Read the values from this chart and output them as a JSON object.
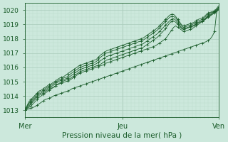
{
  "bg_color": "#cce8dc",
  "grid_color_major": "#aaccbc",
  "grid_color_minor": "#bbddcc",
  "line_color": "#1a5c2a",
  "xlabel": "Pression niveau de la mer( hPa )",
  "ylim": [
    1012.5,
    1020.5
  ],
  "yticks": [
    1013,
    1014,
    1015,
    1016,
    1017,
    1018,
    1019,
    1020
  ],
  "xtick_labels": [
    "Mer",
    "Jeu",
    "Ven"
  ],
  "xtick_positions": [
    0,
    48,
    95
  ],
  "total_points": 96,
  "series": [
    [
      1013.0,
      1013.05,
      1013.1,
      1013.15,
      1013.2,
      1013.25,
      1013.35,
      1013.45,
      1013.55,
      1013.65,
      1013.75,
      1013.8,
      1013.85,
      1013.9,
      1014.0,
      1014.05,
      1014.1,
      1014.15,
      1014.2,
      1014.25,
      1014.3,
      1014.35,
      1014.4,
      1014.5,
      1014.55,
      1014.6,
      1014.65,
      1014.7,
      1014.75,
      1014.8,
      1014.85,
      1014.9,
      1014.95,
      1015.0,
      1015.05,
      1015.1,
      1015.15,
      1015.2,
      1015.25,
      1015.3,
      1015.35,
      1015.4,
      1015.45,
      1015.5,
      1015.55,
      1015.6,
      1015.65,
      1015.7,
      1015.75,
      1015.8,
      1015.85,
      1015.9,
      1015.95,
      1016.0,
      1016.05,
      1016.1,
      1016.15,
      1016.2,
      1016.25,
      1016.3,
      1016.35,
      1016.4,
      1016.45,
      1016.5,
      1016.55,
      1016.6,
      1016.65,
      1016.7,
      1016.75,
      1016.8,
      1016.85,
      1016.9,
      1016.95,
      1017.0,
      1017.05,
      1017.1,
      1017.15,
      1017.2,
      1017.25,
      1017.3,
      1017.35,
      1017.4,
      1017.45,
      1017.5,
      1017.55,
      1017.6,
      1017.65,
      1017.7,
      1017.75,
      1017.8,
      1017.9,
      1018.0,
      1018.2,
      1018.5,
      1019.8,
      1020.2
    ],
    [
      1013.0,
      1013.1,
      1013.2,
      1013.3,
      1013.45,
      1013.6,
      1013.75,
      1013.9,
      1014.0,
      1014.1,
      1014.2,
      1014.3,
      1014.4,
      1014.5,
      1014.6,
      1014.7,
      1014.8,
      1014.85,
      1014.9,
      1014.95,
      1015.0,
      1015.05,
      1015.1,
      1015.2,
      1015.3,
      1015.4,
      1015.5,
      1015.6,
      1015.65,
      1015.7,
      1015.75,
      1015.8,
      1015.85,
      1015.9,
      1015.95,
      1016.0,
      1016.05,
      1016.1,
      1016.15,
      1016.2,
      1016.3,
      1016.35,
      1016.4,
      1016.45,
      1016.5,
      1016.55,
      1016.6,
      1016.65,
      1016.7,
      1016.75,
      1016.8,
      1016.85,
      1016.9,
      1016.95,
      1017.0,
      1017.05,
      1017.1,
      1017.15,
      1017.2,
      1017.25,
      1017.3,
      1017.35,
      1017.4,
      1017.45,
      1017.5,
      1017.6,
      1017.7,
      1017.8,
      1017.9,
      1018.0,
      1018.2,
      1018.4,
      1018.6,
      1018.8,
      1018.9,
      1018.8,
      1018.7,
      1018.6,
      1018.5,
      1018.55,
      1018.6,
      1018.65,
      1018.7,
      1018.8,
      1018.9,
      1019.0,
      1019.1,
      1019.2,
      1019.3,
      1019.4,
      1019.5,
      1019.6,
      1019.7,
      1019.8,
      1019.9,
      1020.0
    ],
    [
      1013.0,
      1013.15,
      1013.3,
      1013.45,
      1013.6,
      1013.75,
      1013.9,
      1014.05,
      1014.1,
      1014.2,
      1014.3,
      1014.4,
      1014.5,
      1014.55,
      1014.6,
      1014.7,
      1014.8,
      1014.9,
      1015.0,
      1015.05,
      1015.1,
      1015.15,
      1015.2,
      1015.3,
      1015.4,
      1015.5,
      1015.6,
      1015.7,
      1015.75,
      1015.8,
      1015.85,
      1015.9,
      1015.95,
      1016.0,
      1016.05,
      1016.1,
      1016.15,
      1016.2,
      1016.3,
      1016.4,
      1016.5,
      1016.55,
      1016.6,
      1016.65,
      1016.7,
      1016.75,
      1016.8,
      1016.85,
      1016.9,
      1016.95,
      1017.0,
      1017.05,
      1017.1,
      1017.15,
      1017.2,
      1017.25,
      1017.3,
      1017.35,
      1017.4,
      1017.5,
      1017.6,
      1017.7,
      1017.8,
      1017.9,
      1018.0,
      1018.1,
      1018.25,
      1018.4,
      1018.55,
      1018.7,
      1018.9,
      1019.1,
      1019.2,
      1019.25,
      1019.15,
      1019.0,
      1018.85,
      1018.7,
      1018.65,
      1018.7,
      1018.75,
      1018.8,
      1018.85,
      1018.9,
      1019.0,
      1019.1,
      1019.15,
      1019.2,
      1019.3,
      1019.45,
      1019.55,
      1019.65,
      1019.75,
      1019.85,
      1019.95,
      1020.05
    ],
    [
      1013.0,
      1013.2,
      1013.4,
      1013.55,
      1013.7,
      1013.85,
      1014.0,
      1014.15,
      1014.2,
      1014.3,
      1014.4,
      1014.5,
      1014.6,
      1014.65,
      1014.75,
      1014.85,
      1014.95,
      1015.05,
      1015.1,
      1015.15,
      1015.2,
      1015.25,
      1015.35,
      1015.45,
      1015.55,
      1015.65,
      1015.75,
      1015.85,
      1015.9,
      1015.95,
      1016.0,
      1016.05,
      1016.1,
      1016.15,
      1016.2,
      1016.25,
      1016.35,
      1016.45,
      1016.55,
      1016.65,
      1016.75,
      1016.8,
      1016.85,
      1016.9,
      1016.95,
      1017.0,
      1017.05,
      1017.1,
      1017.15,
      1017.2,
      1017.25,
      1017.3,
      1017.35,
      1017.4,
      1017.45,
      1017.5,
      1017.55,
      1017.6,
      1017.65,
      1017.75,
      1017.85,
      1017.95,
      1018.05,
      1018.15,
      1018.25,
      1018.35,
      1018.5,
      1018.65,
      1018.8,
      1018.95,
      1019.1,
      1019.25,
      1019.35,
      1019.4,
      1019.3,
      1019.1,
      1018.9,
      1018.75,
      1018.7,
      1018.75,
      1018.8,
      1018.85,
      1018.9,
      1018.95,
      1019.05,
      1019.15,
      1019.2,
      1019.25,
      1019.35,
      1019.5,
      1019.6,
      1019.7,
      1019.8,
      1019.9,
      1020.0,
      1020.1
    ],
    [
      1013.0,
      1013.25,
      1013.5,
      1013.65,
      1013.8,
      1013.95,
      1014.1,
      1014.25,
      1014.3,
      1014.4,
      1014.5,
      1014.6,
      1014.7,
      1014.75,
      1014.85,
      1014.95,
      1015.05,
      1015.15,
      1015.2,
      1015.25,
      1015.3,
      1015.35,
      1015.5,
      1015.6,
      1015.7,
      1015.8,
      1015.9,
      1016.0,
      1016.05,
      1016.1,
      1016.15,
      1016.2,
      1016.25,
      1016.3,
      1016.35,
      1016.4,
      1016.55,
      1016.7,
      1016.8,
      1016.9,
      1017.0,
      1017.05,
      1017.1,
      1017.15,
      1017.2,
      1017.25,
      1017.3,
      1017.35,
      1017.4,
      1017.45,
      1017.5,
      1017.55,
      1017.6,
      1017.65,
      1017.7,
      1017.75,
      1017.8,
      1017.85,
      1017.9,
      1018.0,
      1018.1,
      1018.2,
      1018.3,
      1018.4,
      1018.5,
      1018.6,
      1018.75,
      1018.9,
      1019.05,
      1019.2,
      1019.35,
      1019.5,
      1019.55,
      1019.55,
      1019.45,
      1019.25,
      1019.05,
      1018.85,
      1018.8,
      1018.85,
      1018.9,
      1018.95,
      1019.0,
      1019.05,
      1019.15,
      1019.25,
      1019.3,
      1019.35,
      1019.45,
      1019.6,
      1019.7,
      1019.8,
      1019.85,
      1019.9,
      1020.05,
      1020.2
    ],
    [
      1013.0,
      1013.3,
      1013.6,
      1013.75,
      1013.9,
      1014.05,
      1014.2,
      1014.35,
      1014.4,
      1014.5,
      1014.6,
      1014.7,
      1014.8,
      1014.85,
      1014.95,
      1015.05,
      1015.15,
      1015.25,
      1015.3,
      1015.35,
      1015.45,
      1015.55,
      1015.65,
      1015.75,
      1015.85,
      1015.95,
      1016.05,
      1016.15,
      1016.2,
      1016.25,
      1016.3,
      1016.35,
      1016.4,
      1016.45,
      1016.5,
      1016.55,
      1016.7,
      1016.85,
      1016.95,
      1017.05,
      1017.15,
      1017.2,
      1017.25,
      1017.3,
      1017.35,
      1017.4,
      1017.45,
      1017.5,
      1017.55,
      1017.6,
      1017.65,
      1017.7,
      1017.75,
      1017.8,
      1017.85,
      1017.9,
      1017.95,
      1018.0,
      1018.05,
      1018.15,
      1018.25,
      1018.35,
      1018.45,
      1018.55,
      1018.65,
      1018.75,
      1018.9,
      1019.05,
      1019.2,
      1019.35,
      1019.5,
      1019.65,
      1019.7,
      1019.7,
      1019.55,
      1019.35,
      1019.15,
      1018.95,
      1018.9,
      1018.95,
      1019.0,
      1019.05,
      1019.1,
      1019.15,
      1019.25,
      1019.35,
      1019.4,
      1019.45,
      1019.55,
      1019.7,
      1019.8,
      1019.85,
      1019.9,
      1019.95,
      1020.1,
      1020.3
    ]
  ]
}
